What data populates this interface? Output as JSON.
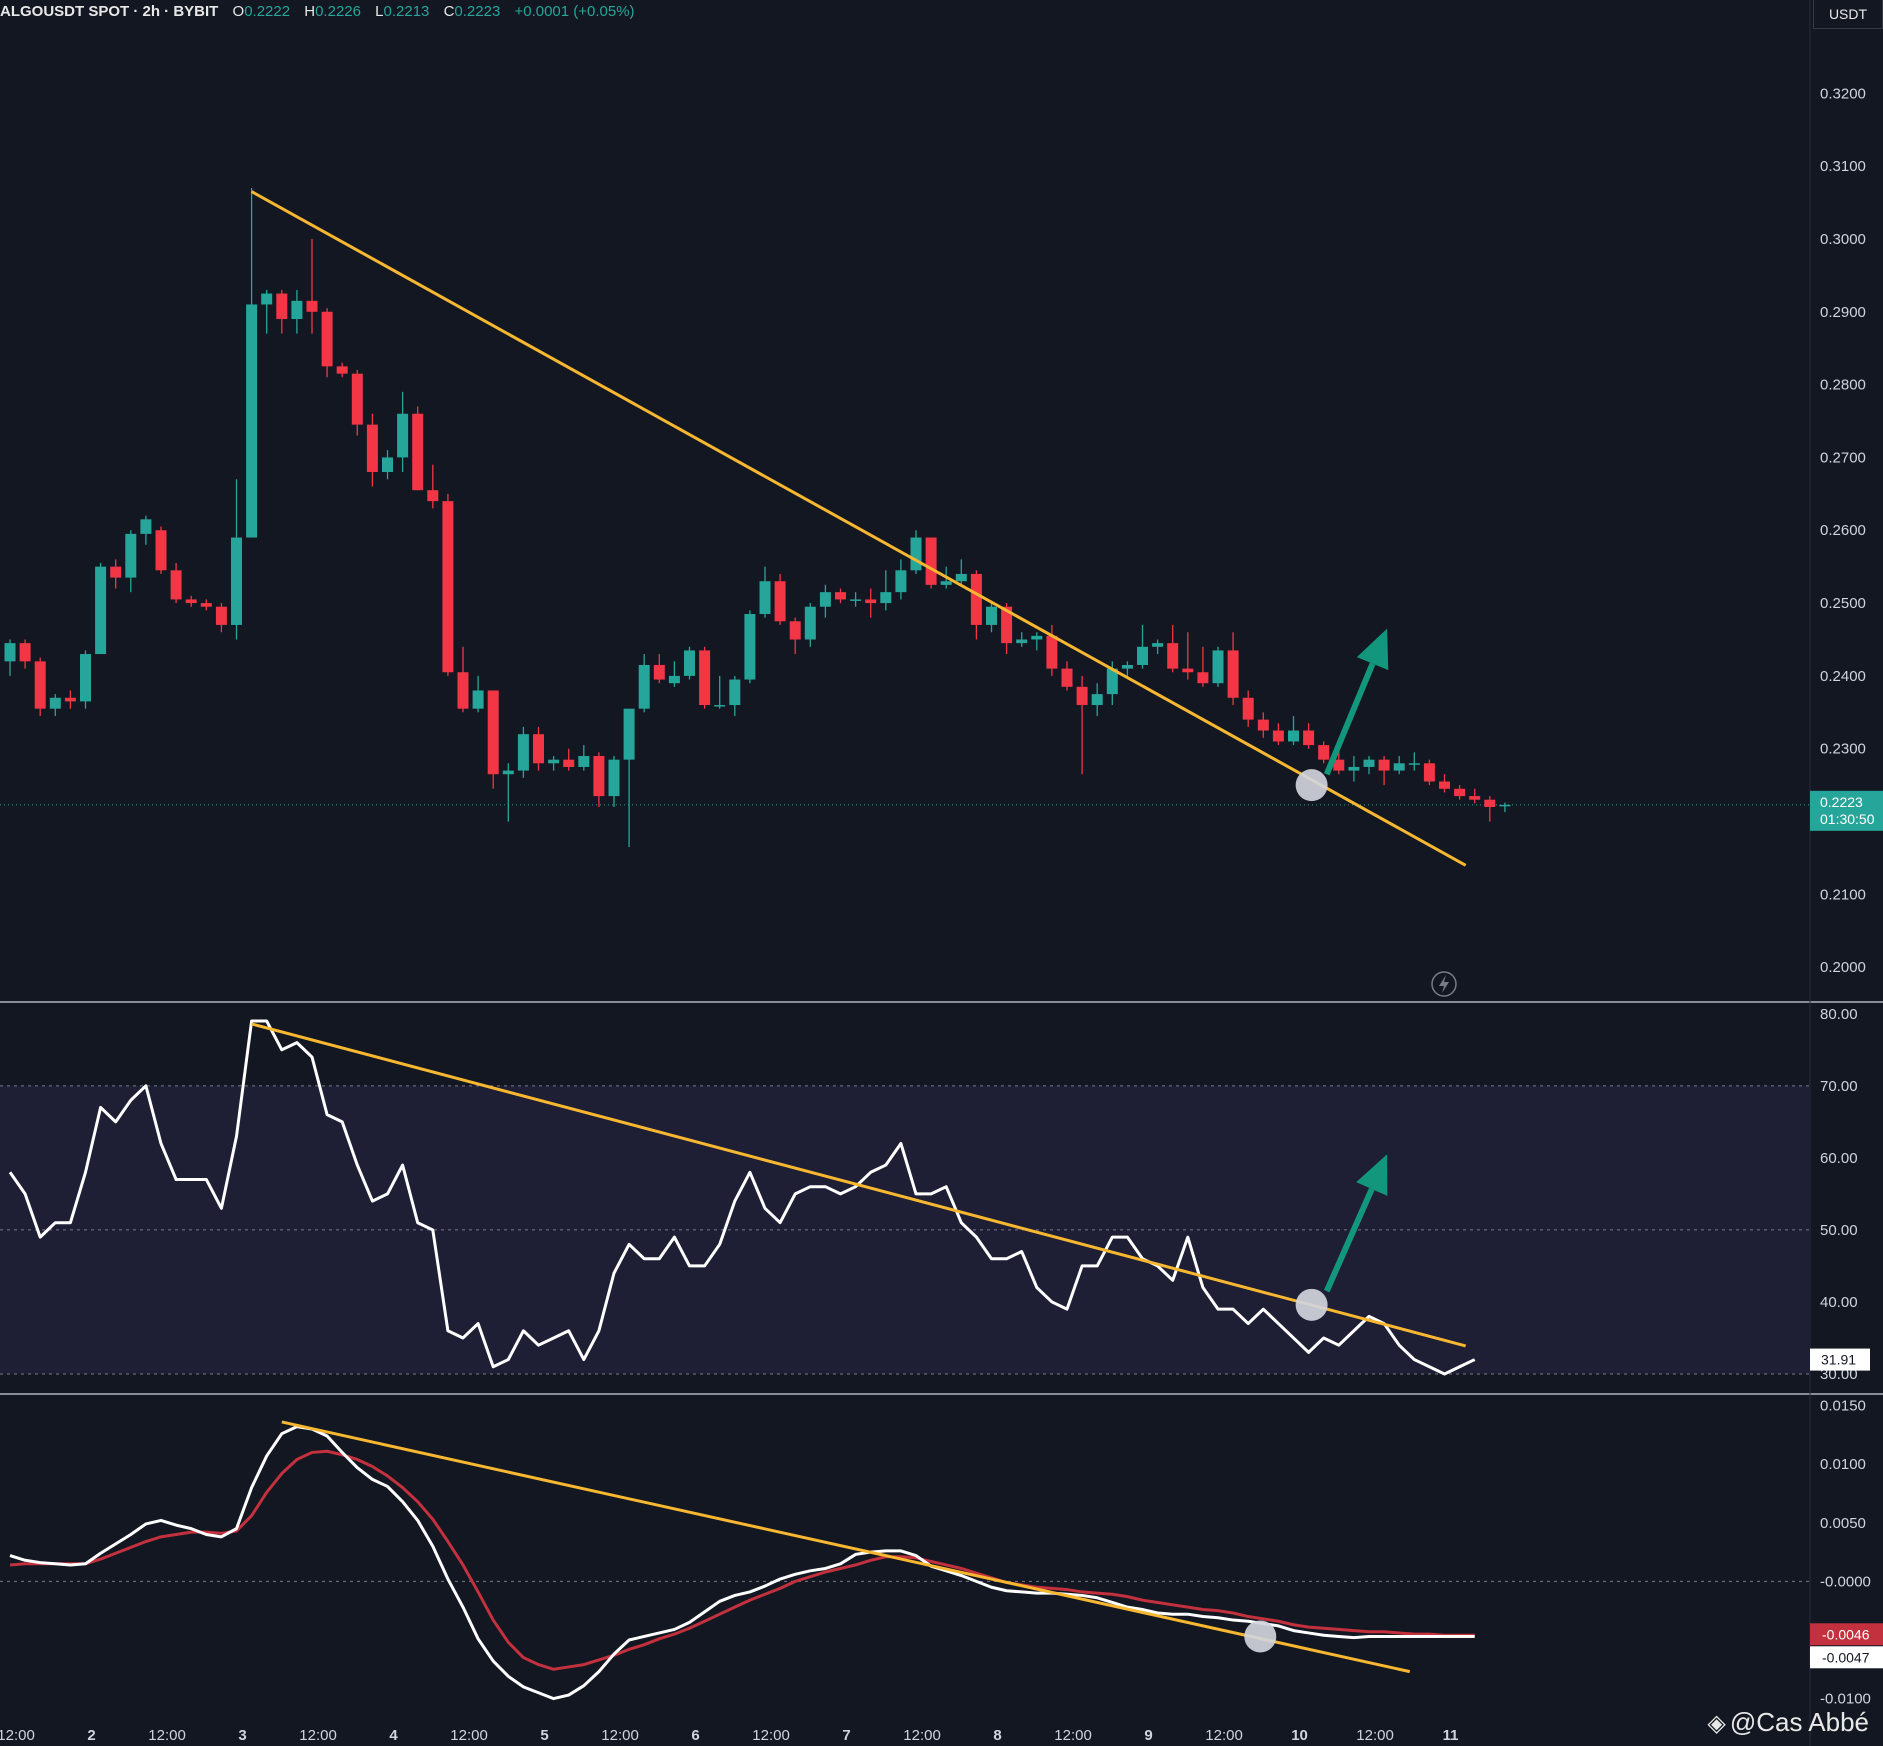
{
  "header": {
    "symbol": "ALGOUSDT SPOT · 2h · BYBIT",
    "open_label": "O",
    "open": "0.2222",
    "high_label": "H",
    "high": "0.2226",
    "low_label": "L",
    "low": "0.2213",
    "close_label": "C",
    "close": "0.2223",
    "change": "+0.0001 (+0.05%)"
  },
  "currency": "USDT",
  "watermark": "@Cas Abbé",
  "colors": {
    "up": "#26a69a",
    "down": "#f23645",
    "trendline": "#f7b731",
    "arrow": "#12977c",
    "signal": "#c2313d",
    "background": "#131722"
  },
  "chart_data": [
    {
      "type": "candlestick",
      "yticks": [
        "0.3200",
        "0.3100",
        "0.3000",
        "0.2900",
        "0.2800",
        "0.2700",
        "0.2600",
        "0.2500",
        "0.2400",
        "0.2300",
        "0.2100",
        "0.2000"
      ],
      "ylim": [
        0.1955,
        0.328
      ],
      "last_price": {
        "value": 0.2223,
        "label": "0.2223",
        "countdown": "01:30:50"
      },
      "candles": [
        [
          0.242,
          0.245,
          0.24,
          0.2445
        ],
        [
          0.2445,
          0.245,
          0.241,
          0.242
        ],
        [
          0.242,
          0.2425,
          0.2345,
          0.2355
        ],
        [
          0.2355,
          0.2375,
          0.2345,
          0.237
        ],
        [
          0.237,
          0.238,
          0.2355,
          0.2365
        ],
        [
          0.2365,
          0.2435,
          0.2355,
          0.243
        ],
        [
          0.243,
          0.2555,
          0.243,
          0.255
        ],
        [
          0.255,
          0.256,
          0.252,
          0.2535
        ],
        [
          0.2535,
          0.26,
          0.2515,
          0.2595
        ],
        [
          0.2595,
          0.262,
          0.258,
          0.2615
        ],
        [
          0.26,
          0.2605,
          0.254,
          0.2545
        ],
        [
          0.2545,
          0.2555,
          0.25,
          0.2505
        ],
        [
          0.2505,
          0.251,
          0.2495,
          0.25
        ],
        [
          0.25,
          0.2505,
          0.249,
          0.2495
        ],
        [
          0.2495,
          0.25,
          0.246,
          0.247
        ],
        [
          0.247,
          0.267,
          0.245,
          0.259
        ],
        [
          0.259,
          0.307,
          0.259,
          0.291
        ],
        [
          0.291,
          0.293,
          0.287,
          0.2925
        ],
        [
          0.2925,
          0.293,
          0.287,
          0.289
        ],
        [
          0.289,
          0.293,
          0.287,
          0.2915
        ],
        [
          0.2915,
          0.3,
          0.287,
          0.29
        ],
        [
          0.29,
          0.2905,
          0.281,
          0.2825
        ],
        [
          0.2825,
          0.283,
          0.281,
          0.2815
        ],
        [
          0.2815,
          0.282,
          0.273,
          0.2745
        ],
        [
          0.2745,
          0.276,
          0.266,
          0.268
        ],
        [
          0.268,
          0.271,
          0.267,
          0.27
        ],
        [
          0.27,
          0.279,
          0.268,
          0.276
        ],
        [
          0.276,
          0.277,
          0.2655,
          0.2655
        ],
        [
          0.2655,
          0.269,
          0.263,
          0.264
        ],
        [
          0.264,
          0.265,
          0.24,
          0.2405
        ],
        [
          0.2405,
          0.244,
          0.235,
          0.2355
        ],
        [
          0.2355,
          0.24,
          0.235,
          0.238
        ],
        [
          0.238,
          0.238,
          0.2245,
          0.2265
        ],
        [
          0.2265,
          0.228,
          0.22,
          0.227
        ],
        [
          0.227,
          0.233,
          0.226,
          0.232
        ],
        [
          0.232,
          0.233,
          0.227,
          0.228
        ],
        [
          0.228,
          0.229,
          0.227,
          0.2285
        ],
        [
          0.2285,
          0.23,
          0.227,
          0.2275
        ],
        [
          0.2275,
          0.2305,
          0.227,
          0.229
        ],
        [
          0.229,
          0.2295,
          0.222,
          0.2235
        ],
        [
          0.2235,
          0.229,
          0.222,
          0.2285
        ],
        [
          0.2285,
          0.235,
          0.2165,
          0.2355
        ],
        [
          0.2355,
          0.243,
          0.235,
          0.2415
        ],
        [
          0.2415,
          0.243,
          0.239,
          0.2395
        ],
        [
          0.239,
          0.242,
          0.2385,
          0.24
        ],
        [
          0.24,
          0.244,
          0.2395,
          0.2435
        ],
        [
          0.2435,
          0.244,
          0.2355,
          0.236
        ],
        [
          0.236,
          0.24,
          0.2355,
          0.236
        ],
        [
          0.236,
          0.24,
          0.2345,
          0.2395
        ],
        [
          0.2395,
          0.249,
          0.239,
          0.2485
        ],
        [
          0.2485,
          0.255,
          0.248,
          0.253
        ],
        [
          0.253,
          0.254,
          0.247,
          0.2475
        ],
        [
          0.2475,
          0.248,
          0.243,
          0.245
        ],
        [
          0.245,
          0.25,
          0.244,
          0.2495
        ],
        [
          0.2495,
          0.2525,
          0.248,
          0.2515
        ],
        [
          0.2515,
          0.252,
          0.25,
          0.2505
        ],
        [
          0.2505,
          0.2515,
          0.2495,
          0.2505
        ],
        [
          0.2505,
          0.252,
          0.248,
          0.25
        ],
        [
          0.25,
          0.2545,
          0.249,
          0.2515
        ],
        [
          0.2515,
          0.256,
          0.2505,
          0.2545
        ],
        [
          0.2545,
          0.26,
          0.254,
          0.259
        ],
        [
          0.259,
          0.259,
          0.252,
          0.2525
        ],
        [
          0.2525,
          0.255,
          0.252,
          0.253
        ],
        [
          0.253,
          0.256,
          0.2525,
          0.254
        ],
        [
          0.254,
          0.2545,
          0.245,
          0.247
        ],
        [
          0.247,
          0.25,
          0.246,
          0.2495
        ],
        [
          0.2495,
          0.25,
          0.243,
          0.2445
        ],
        [
          0.2445,
          0.246,
          0.244,
          0.245
        ],
        [
          0.245,
          0.246,
          0.2435,
          0.2455
        ],
        [
          0.2455,
          0.247,
          0.24,
          0.241
        ],
        [
          0.241,
          0.242,
          0.238,
          0.2385
        ],
        [
          0.2385,
          0.24,
          0.2265,
          0.236
        ],
        [
          0.236,
          0.239,
          0.2345,
          0.2375
        ],
        [
          0.2375,
          0.242,
          0.236,
          0.241
        ],
        [
          0.241,
          0.242,
          0.24,
          0.2415
        ],
        [
          0.2415,
          0.247,
          0.241,
          0.244
        ],
        [
          0.244,
          0.245,
          0.243,
          0.2445
        ],
        [
          0.2445,
          0.247,
          0.2405,
          0.241
        ],
        [
          0.241,
          0.246,
          0.2395,
          0.2405
        ],
        [
          0.2405,
          0.244,
          0.2385,
          0.239
        ],
        [
          0.239,
          0.244,
          0.2385,
          0.2435
        ],
        [
          0.2435,
          0.246,
          0.236,
          0.237
        ],
        [
          0.237,
          0.238,
          0.233,
          0.234
        ],
        [
          0.234,
          0.235,
          0.2315,
          0.2325
        ],
        [
          0.2325,
          0.2335,
          0.2305,
          0.231
        ],
        [
          0.231,
          0.2345,
          0.2305,
          0.2325
        ],
        [
          0.2325,
          0.2335,
          0.23,
          0.2305
        ],
        [
          0.2305,
          0.231,
          0.228,
          0.2285
        ],
        [
          0.2285,
          0.23,
          0.2265,
          0.227
        ],
        [
          0.227,
          0.229,
          0.2255,
          0.2275
        ],
        [
          0.2275,
          0.229,
          0.2265,
          0.2285
        ],
        [
          0.2285,
          0.229,
          0.225,
          0.227
        ],
        [
          0.227,
          0.229,
          0.2265,
          0.228
        ],
        [
          0.228,
          0.2295,
          0.227,
          0.228
        ],
        [
          0.228,
          0.2285,
          0.225,
          0.2255
        ],
        [
          0.2255,
          0.2265,
          0.224,
          0.2245
        ],
        [
          0.2245,
          0.225,
          0.223,
          0.2235
        ],
        [
          0.2235,
          0.2245,
          0.2225,
          0.223
        ],
        [
          0.223,
          0.2235,
          0.22,
          0.222
        ],
        [
          0.2222,
          0.2226,
          0.2213,
          0.2223
        ]
      ],
      "trendline": [
        [
          16.0,
          0.3065
        ],
        [
          96.4,
          0.214
        ]
      ],
      "breakout_point": [
        86.2,
        0.225
      ],
      "arrow": [
        [
          87.2,
          0.2265
        ],
        [
          91.2,
          0.2465
        ]
      ]
    },
    {
      "type": "line",
      "yticks": [
        "80.00",
        "70.00",
        "60.00",
        "50.00",
        "40.00",
        "30.00"
      ],
      "ylim": [
        27.5,
        81.5
      ],
      "band": [
        30,
        70
      ],
      "midline": 50,
      "values": [
        58,
        55,
        49,
        51,
        51,
        58,
        67,
        65,
        68,
        70,
        62,
        57,
        57,
        57,
        53,
        63,
        79,
        79,
        75,
        76,
        74,
        66,
        65,
        59,
        54,
        55,
        59,
        51,
        50,
        36,
        35,
        37,
        31,
        32,
        36,
        34,
        35,
        36,
        32,
        36,
        44,
        48,
        46,
        46,
        49,
        45,
        45,
        48,
        54,
        58,
        53,
        51,
        55,
        56,
        56,
        55,
        56,
        58,
        59,
        62,
        55,
        55,
        56,
        51,
        49,
        46,
        46,
        47,
        42,
        40,
        39,
        45,
        45,
        49,
        49,
        46,
        45,
        43,
        49,
        42,
        39,
        39,
        37,
        39,
        37,
        35,
        33,
        35,
        34,
        36,
        38,
        37,
        34,
        32,
        31,
        30,
        31,
        32
      ],
      "last_value": "31.91",
      "trendline": [
        [
          16.0,
          78.6
        ],
        [
          96.4,
          33.9
        ]
      ],
      "breakout_point": [
        86.2,
        39.6
      ],
      "arrow": [
        [
          87.2,
          41.5
        ],
        [
          91.2,
          60.5
        ]
      ]
    },
    {
      "type": "line",
      "yticks": [
        "0.0150",
        "0.0100",
        "0.0050",
        "-0.0000",
        "-0.0100"
      ],
      "ylim": [
        -0.0114,
        0.0159
      ],
      "zero_line": 0,
      "series": [
        {
          "values": [
            0.0022,
            0.0018,
            0.0016,
            0.0015,
            0.0014,
            0.0015,
            0.0024,
            0.0032,
            0.004,
            0.0049,
            0.0052,
            0.0048,
            0.0045,
            0.004,
            0.0038,
            0.0045,
            0.008,
            0.0107,
            0.0126,
            0.0132,
            0.013,
            0.0124,
            0.011,
            0.0097,
            0.0087,
            0.0081,
            0.0068,
            0.0052,
            0.003,
            0.0002,
            -0.0022,
            -0.0049,
            -0.0068,
            -0.0081,
            -0.009,
            -0.0095,
            -0.01,
            -0.0097,
            -0.0089,
            -0.0077,
            -0.0062,
            -0.005,
            -0.0047,
            -0.0044,
            -0.0041,
            -0.0035,
            -0.0026,
            -0.0017,
            -0.0012,
            -0.0009,
            -0.0004,
            0.0002,
            0.0006,
            0.0009,
            0.0011,
            0.0015,
            0.0023,
            0.0025,
            0.0026,
            0.0026,
            0.0022,
            0.0013,
            0.0009,
            0.0005,
            0.0,
            -0.0005,
            -0.0008,
            -0.0009,
            -0.001,
            -0.001,
            -0.0011,
            -0.0012,
            -0.0014,
            -0.0018,
            -0.0022,
            -0.0024,
            -0.0027,
            -0.0028,
            -0.0028,
            -0.003,
            -0.0031,
            -0.0033,
            -0.0034,
            -0.0036,
            -0.0038,
            -0.0042,
            -0.0044,
            -0.0046,
            -0.0047,
            -0.0048,
            -0.0047,
            -0.0047,
            -0.0047,
            -0.0047,
            -0.0047,
            -0.0047,
            -0.0047,
            -0.0047
          ]
        },
        {
          "values": [
            0.0014,
            0.0015,
            0.0015,
            0.0015,
            0.0015,
            0.0015,
            0.0019,
            0.0024,
            0.0029,
            0.0034,
            0.0038,
            0.004,
            0.0042,
            0.0042,
            0.0041,
            0.0043,
            0.0056,
            0.0076,
            0.0092,
            0.0104,
            0.011,
            0.0111,
            0.0108,
            0.0104,
            0.0098,
            0.009,
            0.008,
            0.0068,
            0.0053,
            0.0034,
            0.0014,
            -0.0009,
            -0.0033,
            -0.0052,
            -0.0065,
            -0.0071,
            -0.0075,
            -0.0073,
            -0.0071,
            -0.0067,
            -0.0063,
            -0.0058,
            -0.0054,
            -0.0049,
            -0.0045,
            -0.004,
            -0.0034,
            -0.0028,
            -0.0022,
            -0.0016,
            -0.0011,
            -0.0006,
            0.0,
            0.0004,
            0.0008,
            0.0011,
            0.0014,
            0.0018,
            0.0021,
            0.0021,
            0.002,
            0.0017,
            0.0014,
            0.0011,
            0.0007,
            0.0003,
            -0.0001,
            -0.0003,
            -0.0005,
            -0.0006,
            -0.0007,
            -0.0009,
            -0.001,
            -0.0011,
            -0.0013,
            -0.0016,
            -0.0018,
            -0.002,
            -0.0022,
            -0.0024,
            -0.0025,
            -0.0027,
            -0.003,
            -0.0032,
            -0.0034,
            -0.0037,
            -0.0039,
            -0.004,
            -0.0041,
            -0.0042,
            -0.0043,
            -0.0043,
            -0.0044,
            -0.0045,
            -0.0045,
            -0.0046,
            -0.0046,
            -0.0046
          ]
        }
      ],
      "last_values": [
        "-0.0046",
        "-0.0047"
      ],
      "trendline": [
        [
          18.0,
          0.0136
        ],
        [
          92.7,
          -0.0077
        ]
      ],
      "breakout_point": [
        82.8,
        -0.0047
      ]
    }
  ],
  "xaxis": {
    "labels": [
      {
        "text": "12:00",
        "i": 0.4
      },
      {
        "text": "2",
        "i": 5.4
      },
      {
        "text": "12:00",
        "i": 10.4
      },
      {
        "text": "3",
        "i": 15.4
      },
      {
        "text": "12:00",
        "i": 20.4
      },
      {
        "text": "4",
        "i": 25.4
      },
      {
        "text": "12:00",
        "i": 30.4
      },
      {
        "text": "5",
        "i": 35.4
      },
      {
        "text": "12:00",
        "i": 40.4
      },
      {
        "text": "6",
        "i": 45.4
      },
      {
        "text": "12:00",
        "i": 50.4
      },
      {
        "text": "7",
        "i": 55.4
      },
      {
        "text": "12:00",
        "i": 60.4
      },
      {
        "text": "8",
        "i": 65.4
      },
      {
        "text": "12:00",
        "i": 70.4
      },
      {
        "text": "9",
        "i": 75.4
      },
      {
        "text": "12:00",
        "i": 80.4
      },
      {
        "text": "10",
        "i": 85.4
      },
      {
        "text": "12:00",
        "i": 90.4
      },
      {
        "text": "11",
        "i": 95.4
      }
    ]
  }
}
